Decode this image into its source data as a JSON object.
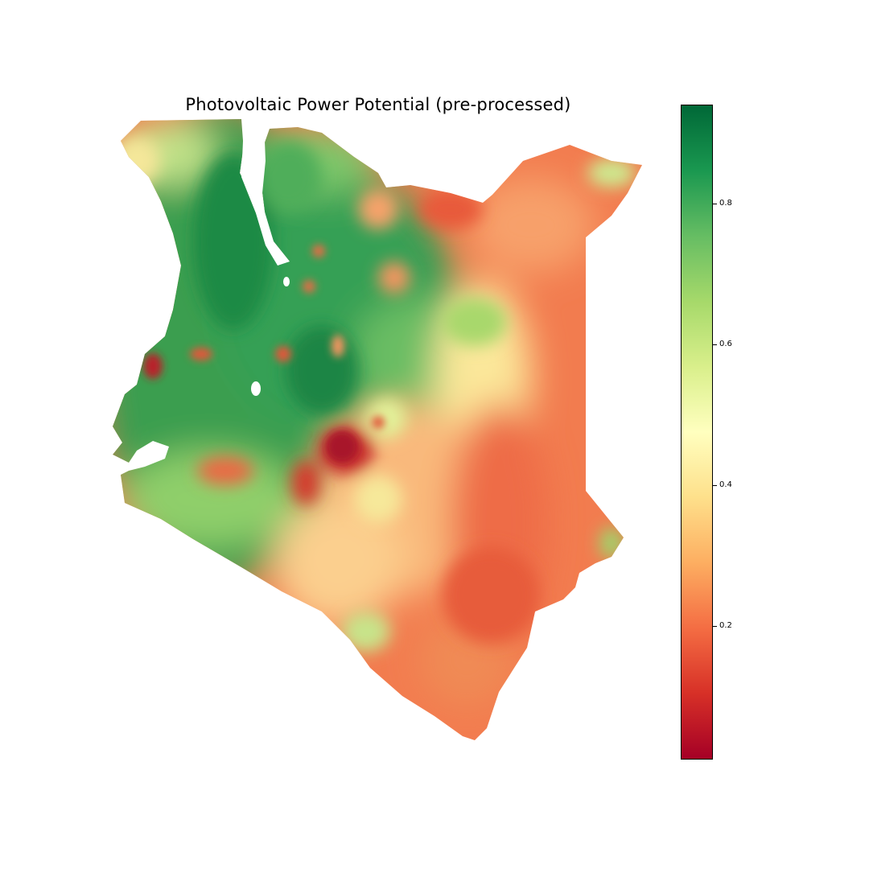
{
  "title": "Photovoltaic Power Potential (pre-processed)",
  "colorbar": {
    "colormap": "RdYlGn",
    "min": 0.01,
    "max": 0.94,
    "stops": [
      "#a50026",
      "#d73027",
      "#f46d43",
      "#fdae61",
      "#fee08b",
      "#ffffbf",
      "#d9ef8b",
      "#a6d96a",
      "#66bd63",
      "#1a9850",
      "#006837"
    ],
    "ticks": [
      {
        "value": 0.2,
        "label": "0.2"
      },
      {
        "value": 0.4,
        "label": "0.4"
      },
      {
        "value": 0.6,
        "label": "0.6"
      },
      {
        "value": 0.8,
        "label": "0.8"
      }
    ]
  },
  "map": {
    "region": "Kenya",
    "layer": "Photovoltaic Power Potential (pre-processed)"
  }
}
